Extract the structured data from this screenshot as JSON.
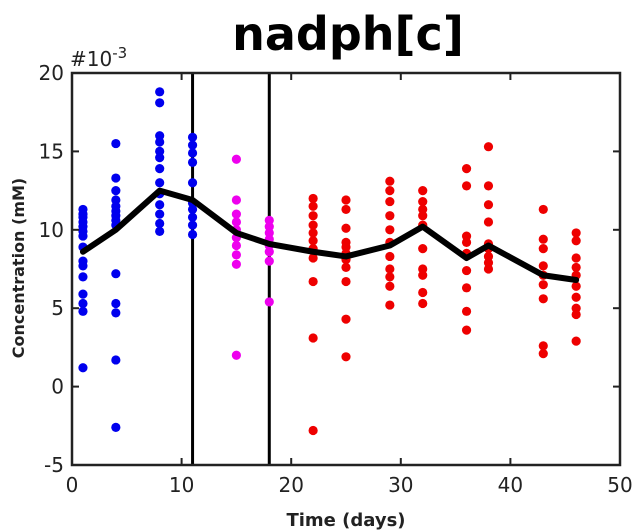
{
  "chart_data": {
    "type": "scatter",
    "title": "nadph[c]",
    "xlabel": "Time (days)",
    "ylabel": "Concentration (mM)",
    "y_multiplier_label": "#10",
    "y_multiplier_exp": "-3",
    "xlim": [
      0,
      50
    ],
    "ylim": [
      -5,
      20
    ],
    "xticks": [
      "0",
      "10",
      "20",
      "30",
      "40",
      "50"
    ],
    "yticks": [
      "-5",
      "0",
      "5",
      "10",
      "15",
      "20"
    ],
    "grid": false,
    "vertical_lines_x": [
      11,
      18
    ],
    "colors": {
      "blue": "#0000ee",
      "magenta": "#ee00ee",
      "red": "#ee0000",
      "mean_line": "#000000"
    },
    "series": [
      {
        "color": "blue",
        "points": [
          [
            1,
            11.3
          ],
          [
            1,
            11.0
          ],
          [
            1,
            10.8
          ],
          [
            1,
            10.5
          ],
          [
            1,
            10.2
          ],
          [
            1,
            9.9
          ],
          [
            1,
            9.6
          ],
          [
            1,
            8.9
          ],
          [
            1,
            8.0
          ],
          [
            1,
            7.7
          ],
          [
            1,
            7.0
          ],
          [
            1,
            5.9
          ],
          [
            1,
            5.3
          ],
          [
            1,
            4.8
          ],
          [
            1,
            1.2
          ],
          [
            4,
            15.5
          ],
          [
            4,
            13.3
          ],
          [
            4,
            12.5
          ],
          [
            4,
            11.9
          ],
          [
            4,
            11.5
          ],
          [
            4,
            11.2
          ],
          [
            4,
            10.9
          ],
          [
            4,
            10.6
          ],
          [
            4,
            10.3
          ],
          [
            4,
            7.2
          ],
          [
            4,
            5.3
          ],
          [
            4,
            4.7
          ],
          [
            4,
            1.7
          ],
          [
            4,
            -2.6
          ],
          [
            8,
            18.8
          ],
          [
            8,
            18.1
          ],
          [
            8,
            16.0
          ],
          [
            8,
            15.6
          ],
          [
            8,
            15.0
          ],
          [
            8,
            14.6
          ],
          [
            8,
            13.9
          ],
          [
            8,
            13.0
          ],
          [
            8,
            12.3
          ],
          [
            8,
            11.6
          ],
          [
            8,
            11.0
          ],
          [
            8,
            10.4
          ],
          [
            8,
            9.9
          ],
          [
            11,
            15.9
          ],
          [
            11,
            15.4
          ],
          [
            11,
            14.9
          ],
          [
            11,
            14.3
          ],
          [
            11,
            13.0
          ],
          [
            11,
            11.7
          ],
          [
            11,
            11.3
          ],
          [
            11,
            10.8
          ],
          [
            11,
            10.3
          ],
          [
            11,
            9.7
          ]
        ]
      },
      {
        "color": "magenta",
        "points": [
          [
            15,
            14.5
          ],
          [
            15,
            11.9
          ],
          [
            15,
            11.0
          ],
          [
            15,
            10.5
          ],
          [
            15,
            10.0
          ],
          [
            15,
            9.5
          ],
          [
            15,
            9.0
          ],
          [
            15,
            8.4
          ],
          [
            15,
            7.8
          ],
          [
            15,
            2.0
          ],
          [
            18,
            10.6
          ],
          [
            18,
            10.2
          ],
          [
            18,
            9.8
          ],
          [
            18,
            9.4
          ],
          [
            18,
            9.0
          ],
          [
            18,
            8.6
          ],
          [
            18,
            8.0
          ],
          [
            18,
            5.4
          ]
        ]
      },
      {
        "color": "red",
        "points": [
          [
            22,
            12.0
          ],
          [
            22,
            11.5
          ],
          [
            22,
            10.9
          ],
          [
            22,
            10.3
          ],
          [
            22,
            9.8
          ],
          [
            22,
            9.3
          ],
          [
            22,
            8.8
          ],
          [
            22,
            8.2
          ],
          [
            22,
            6.7
          ],
          [
            22,
            3.1
          ],
          [
            22,
            -2.8
          ],
          [
            25,
            11.9
          ],
          [
            25,
            11.3
          ],
          [
            25,
            10.1
          ],
          [
            25,
            9.2
          ],
          [
            25,
            8.9
          ],
          [
            25,
            8.5
          ],
          [
            25,
            8.1
          ],
          [
            25,
            7.6
          ],
          [
            25,
            6.7
          ],
          [
            25,
            4.3
          ],
          [
            25,
            1.9
          ],
          [
            29,
            13.1
          ],
          [
            29,
            12.5
          ],
          [
            29,
            11.8
          ],
          [
            29,
            10.9
          ],
          [
            29,
            10.0
          ],
          [
            29,
            9.2
          ],
          [
            29,
            8.3
          ],
          [
            29,
            7.5
          ],
          [
            29,
            7.0
          ],
          [
            29,
            6.4
          ],
          [
            29,
            5.2
          ],
          [
            32,
            12.5
          ],
          [
            32,
            11.8
          ],
          [
            32,
            11.3
          ],
          [
            32,
            10.9
          ],
          [
            32,
            10.3
          ],
          [
            32,
            8.8
          ],
          [
            32,
            7.5
          ],
          [
            32,
            7.1
          ],
          [
            32,
            6.0
          ],
          [
            32,
            5.3
          ],
          [
            36,
            13.9
          ],
          [
            36,
            12.8
          ],
          [
            36,
            9.6
          ],
          [
            36,
            9.2
          ],
          [
            36,
            8.5
          ],
          [
            36,
            7.4
          ],
          [
            36,
            6.3
          ],
          [
            36,
            4.8
          ],
          [
            36,
            3.6
          ],
          [
            38,
            15.3
          ],
          [
            38,
            12.8
          ],
          [
            38,
            11.6
          ],
          [
            38,
            10.5
          ],
          [
            38,
            9.1
          ],
          [
            38,
            8.8
          ],
          [
            38,
            8.3
          ],
          [
            38,
            7.9
          ],
          [
            38,
            7.5
          ],
          [
            43,
            11.3
          ],
          [
            43,
            9.4
          ],
          [
            43,
            8.8
          ],
          [
            43,
            7.7
          ],
          [
            43,
            7.1
          ],
          [
            43,
            6.5
          ],
          [
            43,
            5.6
          ],
          [
            43,
            2.6
          ],
          [
            43,
            2.1
          ],
          [
            46,
            9.8
          ],
          [
            46,
            9.3
          ],
          [
            46,
            8.2
          ],
          [
            46,
            7.6
          ],
          [
            46,
            7.1
          ],
          [
            46,
            6.4
          ],
          [
            46,
            5.7
          ],
          [
            46,
            5.0
          ],
          [
            46,
            4.6
          ],
          [
            46,
            2.9
          ]
        ]
      }
    ],
    "mean_line": {
      "x": [
        1,
        4,
        8,
        11,
        15,
        18,
        22,
        25,
        29,
        32,
        36,
        38,
        43,
        46
      ],
      "y": [
        8.6,
        10.0,
        12.5,
        11.9,
        9.8,
        9.1,
        8.6,
        8.3,
        9.0,
        10.2,
        8.2,
        9.0,
        7.1,
        6.8
      ]
    }
  }
}
